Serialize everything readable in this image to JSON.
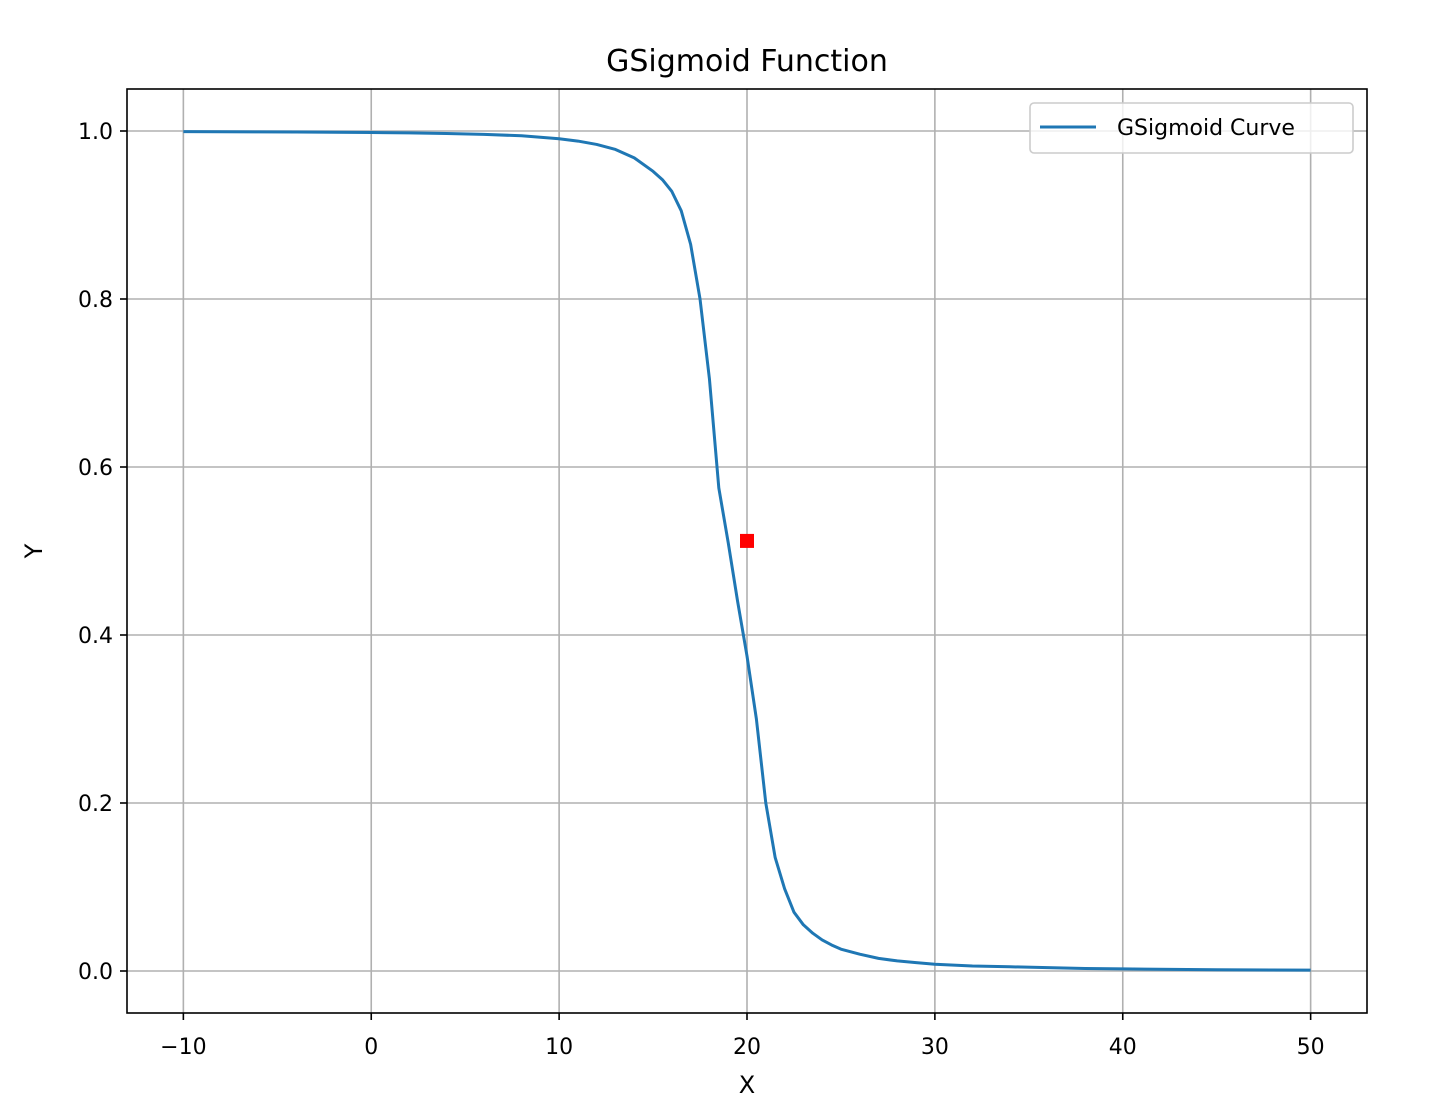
{
  "chart_data": {
    "type": "line",
    "title": "GSigmoid Function",
    "xlabel": "X",
    "ylabel": "Y",
    "xlim": [
      -13,
      53
    ],
    "ylim": [
      -0.05,
      1.05
    ],
    "xticks": [
      -10,
      0,
      10,
      20,
      30,
      40,
      50
    ],
    "xtick_labels": [
      "−10",
      "0",
      "10",
      "20",
      "30",
      "40",
      "50"
    ],
    "yticks": [
      0.0,
      0.2,
      0.4,
      0.6,
      0.8,
      1.0
    ],
    "ytick_labels": [
      "0.0",
      "0.2",
      "0.4",
      "0.6",
      "0.8",
      "1.0"
    ],
    "grid": true,
    "legend_position": "top-right",
    "series": [
      {
        "name": "GSigmoid Curve",
        "color": "#1f77b4",
        "x": [
          -10,
          -8,
          -6,
          -4,
          -2,
          0,
          2,
          4,
          6,
          8,
          10,
          11,
          12,
          13,
          14,
          15,
          15.5,
          16,
          16.5,
          17,
          17.5,
          18,
          18.5,
          19,
          19.5,
          20,
          20.5,
          21,
          21.5,
          22,
          22.5,
          23,
          23.5,
          24,
          24.5,
          25,
          26,
          27,
          28,
          29,
          30,
          32,
          34,
          36,
          38,
          40,
          45,
          50
        ],
        "y": [
          0.9993,
          0.9991,
          0.999,
          0.9988,
          0.9985,
          0.9982,
          0.9977,
          0.997,
          0.996,
          0.9943,
          0.9908,
          0.988,
          0.984,
          0.978,
          0.968,
          0.952,
          0.942,
          0.928,
          0.905,
          0.865,
          0.8,
          0.705,
          0.575,
          0.51,
          0.44,
          0.375,
          0.3,
          0.2,
          0.135,
          0.098,
          0.07,
          0.055,
          0.045,
          0.037,
          0.031,
          0.026,
          0.02,
          0.015,
          0.012,
          0.01,
          0.008,
          0.006,
          0.005,
          0.004,
          0.003,
          0.0025,
          0.0015,
          0.001
        ]
      },
      {
        "name": "",
        "color": "#ff0000",
        "marker": "square",
        "x": [
          20
        ],
        "y": [
          0.512
        ]
      }
    ]
  }
}
